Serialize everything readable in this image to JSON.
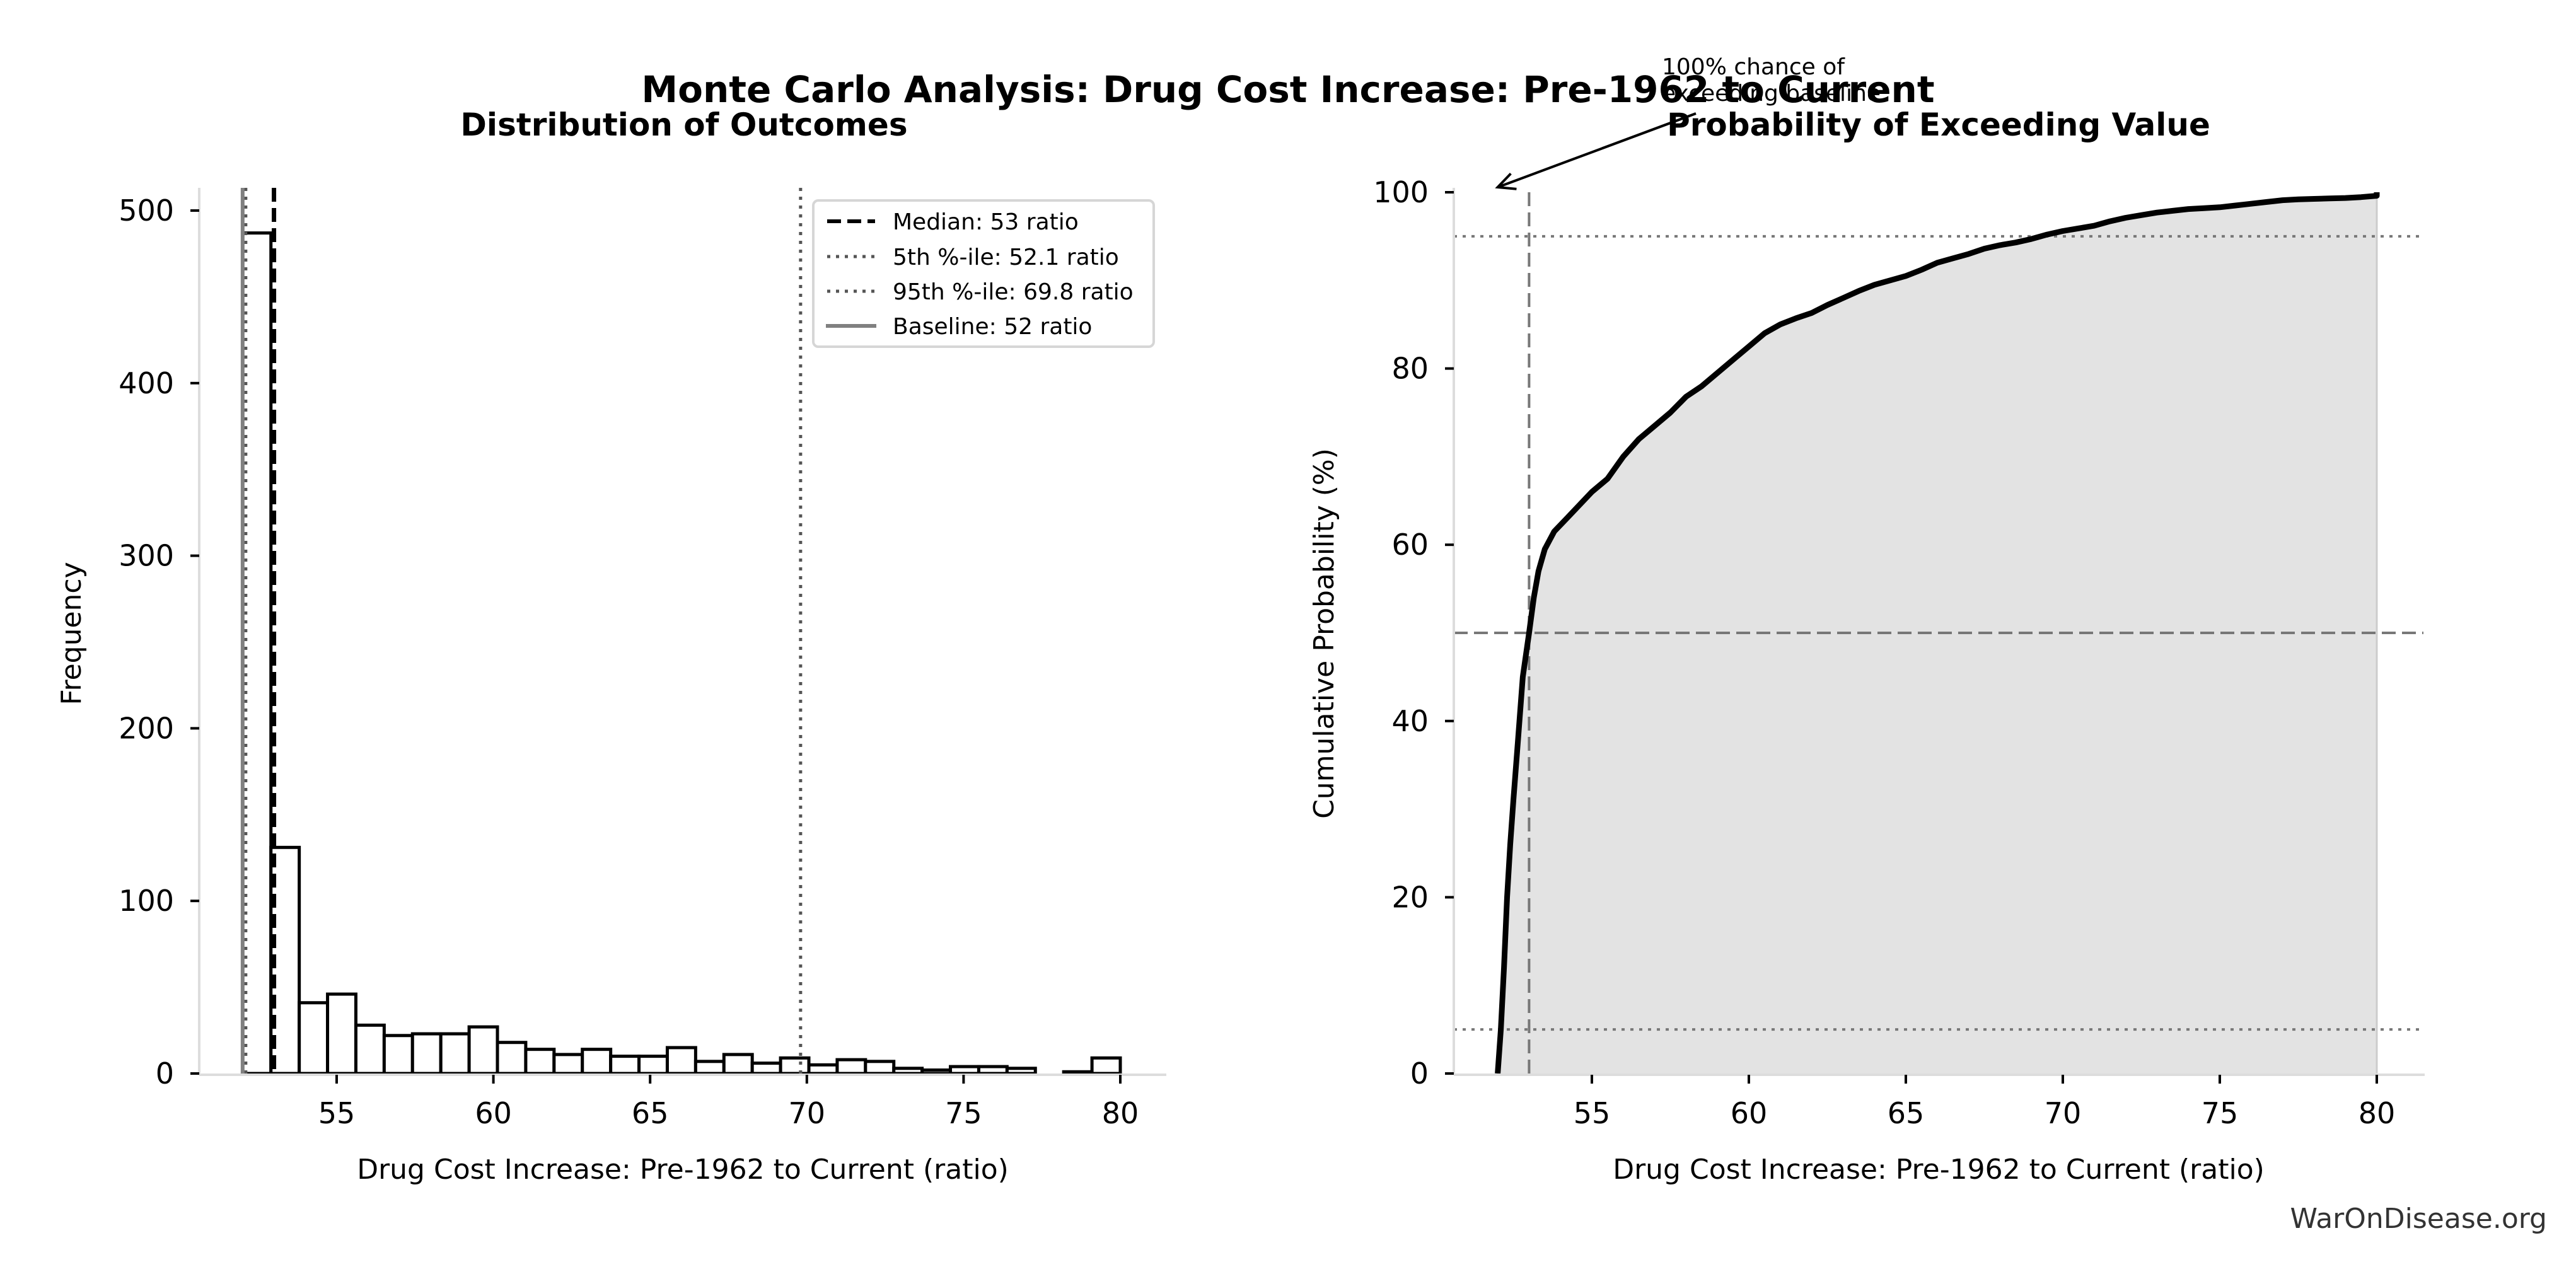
{
  "figure": {
    "suptitle": "Monte Carlo Analysis: Drug Cost Increase: Pre-1962 to Current",
    "watermark": "WarOnDisease.org"
  },
  "colors": {
    "bar_edge": "#000000",
    "bar_fill": "#ffffff",
    "median_line": "#000000",
    "percentile_line": "#555555",
    "baseline_line": "#808080",
    "cdf_line": "#000000",
    "cdf_fill": "#e3e3e3",
    "spine": "#dddddd",
    "ref_line": "#777777"
  },
  "chart_data": [
    {
      "type": "bar",
      "subtype": "histogram",
      "title": "Distribution of Outcomes",
      "xlabel": "Drug Cost Increase: Pre-1962 to Current (ratio)",
      "ylabel": "Frequency",
      "xlim": [
        50.8,
        81.4
      ],
      "ylim": [
        0,
        515
      ],
      "xticks": [
        55,
        60,
        65,
        70,
        75,
        80
      ],
      "yticks": [
        0,
        100,
        200,
        300,
        400,
        500
      ],
      "bin_range": [
        52.0,
        80.0
      ],
      "bin_counts": [
        487,
        131,
        41,
        46,
        28,
        22,
        23,
        23,
        27,
        18,
        14,
        11,
        14,
        10,
        10,
        15,
        7,
        11,
        6,
        9,
        5,
        8,
        7,
        3,
        2,
        4,
        4,
        3,
        0,
        1,
        9
      ],
      "vlines": [
        {
          "name": "median",
          "x": 53.0,
          "style": "dashed",
          "label": "Median: 53 ratio"
        },
        {
          "name": "p5",
          "x": 52.1,
          "style": "dotted",
          "label": "5th %-ile: 52.1 ratio"
        },
        {
          "name": "p95",
          "x": 69.8,
          "style": "dotted",
          "label": "95th %-ile: 69.8 ratio"
        },
        {
          "name": "baseline",
          "x": 52.0,
          "style": "solid",
          "label": "Baseline: 52 ratio"
        }
      ],
      "legend": {
        "placement": "upper-right",
        "entries": [
          {
            "label": "Median: 53 ratio",
            "style": "dashed"
          },
          {
            "label": "5th %-ile: 52.1 ratio",
            "style": "dotted"
          },
          {
            "label": "95th %-ile: 69.8 ratio",
            "style": "dotted"
          },
          {
            "label": "Baseline: 52 ratio",
            "style": "solid"
          }
        ]
      },
      "grid": false
    },
    {
      "type": "area",
      "subtype": "cdf",
      "title": "Probability of Exceeding Value",
      "xlabel": "Drug Cost Increase: Pre-1962 to Current (ratio)",
      "ylabel": "Cumulative Probability (%)",
      "xlim": [
        50.8,
        81.4
      ],
      "ylim": [
        0,
        100
      ],
      "xticks": [
        55,
        60,
        65,
        70,
        75,
        80
      ],
      "yticks": [
        0,
        20,
        40,
        60,
        80,
        100
      ],
      "points": [
        [
          52.0,
          0
        ],
        [
          52.1,
          5
        ],
        [
          52.2,
          12
        ],
        [
          52.3,
          20
        ],
        [
          52.4,
          26
        ],
        [
          52.5,
          31
        ],
        [
          52.65,
          38
        ],
        [
          52.8,
          45
        ],
        [
          53.0,
          50
        ],
        [
          53.15,
          54
        ],
        [
          53.3,
          57
        ],
        [
          53.5,
          59.5
        ],
        [
          53.8,
          61.5
        ],
        [
          54.2,
          63
        ],
        [
          54.6,
          64.5
        ],
        [
          55.0,
          66
        ],
        [
          55.5,
          67.5
        ],
        [
          56.0,
          70
        ],
        [
          56.5,
          72
        ],
        [
          57.0,
          73.5
        ],
        [
          57.5,
          75
        ],
        [
          58.0,
          76.8
        ],
        [
          58.5,
          78
        ],
        [
          59.0,
          79.5
        ],
        [
          59.5,
          81
        ],
        [
          60.0,
          82.5
        ],
        [
          60.5,
          84
        ],
        [
          61.0,
          85
        ],
        [
          61.5,
          85.7
        ],
        [
          62.0,
          86.3
        ],
        [
          62.5,
          87.2
        ],
        [
          63.0,
          88
        ],
        [
          63.5,
          88.8
        ],
        [
          64.0,
          89.5
        ],
        [
          64.5,
          90
        ],
        [
          65.0,
          90.5
        ],
        [
          65.5,
          91.2
        ],
        [
          66.0,
          92
        ],
        [
          66.5,
          92.5
        ],
        [
          67.0,
          93
        ],
        [
          67.5,
          93.6
        ],
        [
          68.0,
          94
        ],
        [
          68.5,
          94.3
        ],
        [
          69.0,
          94.7
        ],
        [
          69.5,
          95.2
        ],
        [
          70.0,
          95.6
        ],
        [
          70.5,
          95.9
        ],
        [
          71.0,
          96.2
        ],
        [
          71.5,
          96.7
        ],
        [
          72.0,
          97.1
        ],
        [
          72.5,
          97.4
        ],
        [
          73.0,
          97.7
        ],
        [
          73.5,
          97.9
        ],
        [
          74.0,
          98.1
        ],
        [
          74.5,
          98.2
        ],
        [
          75.0,
          98.3
        ],
        [
          75.5,
          98.5
        ],
        [
          76.0,
          98.7
        ],
        [
          76.5,
          98.9
        ],
        [
          77.0,
          99.1
        ],
        [
          77.5,
          99.2
        ],
        [
          78.0,
          99.25
        ],
        [
          78.5,
          99.3
        ],
        [
          79.0,
          99.35
        ],
        [
          79.5,
          99.45
        ],
        [
          80.0,
          99.6
        ],
        [
          80.0,
          100
        ]
      ],
      "hlines": [
        {
          "name": "p95-level",
          "y": 95,
          "style": "dotted"
        },
        {
          "name": "median-level",
          "y": 50,
          "style": "dashed"
        },
        {
          "name": "p5-level",
          "y": 5,
          "style": "dotted"
        }
      ],
      "vlines": [
        {
          "name": "median",
          "x": 53.0,
          "style": "dashed"
        }
      ],
      "annotation": {
        "text_line1": "100% chance of",
        "text_line2": "exceeding baseline",
        "points_to": [
          52.0,
          100
        ]
      },
      "grid": false
    }
  ]
}
